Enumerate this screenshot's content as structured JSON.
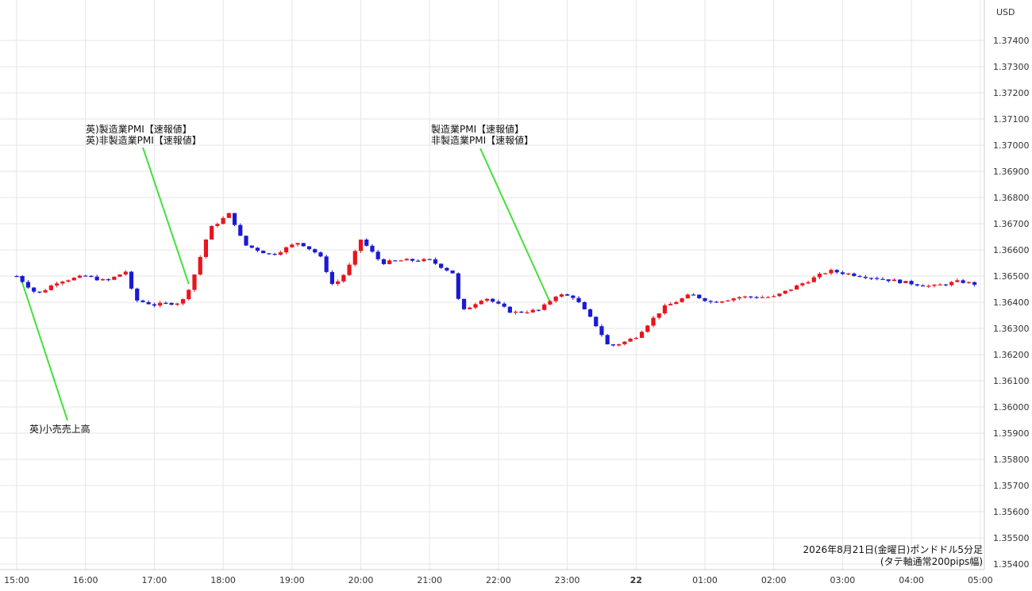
{
  "chart_data": {
    "type": "candlestick",
    "currency_label": "USD",
    "footer_line1": "2026年8月21日(金曜日)ポンドドル5分足",
    "footer_line2": "(タテ軸通常200pips幅)",
    "ylim": [
      1.354,
      1.3748
    ],
    "y_ticks": [
      "1.37400",
      "1.37300",
      "1.37200",
      "1.37100",
      "1.37000",
      "1.36900",
      "1.36800",
      "1.36700",
      "1.36600",
      "1.36500",
      "1.36400",
      "1.36300",
      "1.36200",
      "1.36100",
      "1.36000",
      "1.35900",
      "1.35800",
      "1.35700",
      "1.35600",
      "1.35500",
      "1.35400"
    ],
    "x_ticks": [
      "15:00",
      "16:00",
      "17:00",
      "18:00",
      "19:00",
      "20:00",
      "21:00",
      "22:00",
      "23:00",
      "22",
      "01:00",
      "02:00",
      "03:00",
      "04:00",
      "05:00"
    ],
    "colors": {
      "up": "#e8141e",
      "down": "#1a1ad6",
      "annotation_line": "#44e03a",
      "grid": "#e6e6e6"
    },
    "annotations": [
      {
        "lines": [
          "英)小売売上高"
        ],
        "time_index": 0.05,
        "price": 1.365
      },
      {
        "lines": [
          "英)製造業PMI【速報値】",
          "英)非製造業PMI【速報値】"
        ],
        "time_index": 2.5,
        "price": 1.3647
      },
      {
        "lines": [
          "製造業PMI【速報値】",
          "非製造業PMI【速報値】"
        ],
        "time_index": 7.75,
        "price": 1.364
      }
    ],
    "waypoints": [
      [
        0,
        1.365
      ],
      [
        0.3,
        1.3643
      ],
      [
        0.6,
        1.3648
      ],
      [
        1.0,
        1.365
      ],
      [
        1.3,
        1.3648
      ],
      [
        1.6,
        1.3652
      ],
      [
        1.7,
        1.3641
      ],
      [
        2.0,
        1.3639
      ],
      [
        2.4,
        1.364
      ],
      [
        2.55,
        1.3648
      ],
      [
        2.8,
        1.3668
      ],
      [
        3.1,
        1.3674
      ],
      [
        3.3,
        1.3662
      ],
      [
        3.7,
        1.3658
      ],
      [
        4.1,
        1.3663
      ],
      [
        4.4,
        1.3658
      ],
      [
        4.6,
        1.3646
      ],
      [
        4.8,
        1.3652
      ],
      [
        5.0,
        1.3664
      ],
      [
        5.3,
        1.3655
      ],
      [
        5.6,
        1.3656
      ],
      [
        6.0,
        1.3656
      ],
      [
        6.35,
        1.3651
      ],
      [
        6.45,
        1.3636
      ],
      [
        6.8,
        1.3642
      ],
      [
        7.2,
        1.3636
      ],
      [
        7.6,
        1.3637
      ],
      [
        7.85,
        1.3643
      ],
      [
        8.1,
        1.3642
      ],
      [
        8.45,
        1.363
      ],
      [
        8.6,
        1.3623
      ],
      [
        8.85,
        1.3625
      ],
      [
        9.0,
        1.3627
      ],
      [
        9.4,
        1.3638
      ],
      [
        9.8,
        1.3643
      ],
      [
        10.1,
        1.364
      ],
      [
        10.5,
        1.3642
      ],
      [
        11.0,
        1.3642
      ],
      [
        11.4,
        1.3647
      ],
      [
        11.8,
        1.3652
      ],
      [
        12.3,
        1.365
      ],
      [
        12.8,
        1.3648
      ],
      [
        13.3,
        1.3646
      ],
      [
        13.7,
        1.3648
      ],
      [
        13.9,
        1.3647
      ]
    ]
  }
}
